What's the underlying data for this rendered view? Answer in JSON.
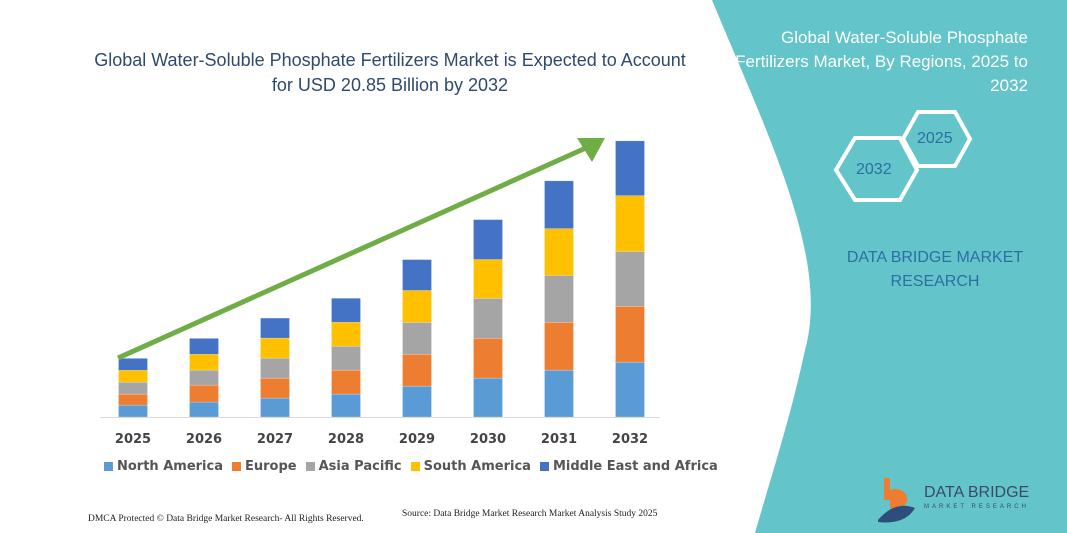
{
  "header": {
    "title": "Global Water-Soluble Phosphate Fertilizers Market is Expected to Account for USD 20.85 Billion by 2032"
  },
  "side_panel": {
    "title": "Global Water-Soluble Phosphate Fertilizers Market, By Regions, 2025 to 2032",
    "hex_start": "2025",
    "hex_end": "2032",
    "brand_text": "DATA BRIDGE MARKET RESEARCH",
    "logo_name": "DATA BRIDGE",
    "logo_sub": "MARKET RESEARCH",
    "panel_color": "#63c5c9"
  },
  "footer": {
    "dmca": "DMCA Protected © Data Bridge Market Research-  All Rights Reserved.",
    "source": "Source: Data Bridge Market Research  Market Analysis Study 2025"
  },
  "chart_data": {
    "type": "bar",
    "stacked": true,
    "title": "Global Water-Soluble Phosphate Fertilizers Market is Expected to Account for USD 20.85 Billion by 2032",
    "xlabel": "",
    "ylabel": "",
    "unit": "USD Billion (estimated)",
    "grid": false,
    "legend_position": "bottom",
    "trend_arrow": true,
    "categories": [
      "2025",
      "2026",
      "2027",
      "2028",
      "2029",
      "2030",
      "2031",
      "2032"
    ],
    "series": [
      {
        "name": "North America",
        "color": "#5b9bd5",
        "values": [
          0.9,
          1.13,
          1.43,
          1.73,
          2.33,
          2.94,
          3.54,
          4.14
        ]
      },
      {
        "name": "Europe",
        "color": "#ed7d31",
        "values": [
          0.83,
          1.28,
          1.51,
          1.81,
          2.41,
          3.01,
          3.61,
          4.22
        ]
      },
      {
        "name": "Asia Pacific",
        "color": "#a5a5a5",
        "values": [
          0.9,
          1.13,
          1.51,
          1.81,
          2.41,
          3.01,
          3.54,
          4.14
        ]
      },
      {
        "name": "South America",
        "color": "#ffc000",
        "values": [
          0.9,
          1.2,
          1.51,
          1.81,
          2.41,
          2.94,
          3.54,
          4.22
        ]
      },
      {
        "name": "Middle East and Africa",
        "color": "#4472c4",
        "values": [
          0.9,
          1.2,
          1.51,
          1.81,
          2.33,
          3.01,
          3.61,
          4.14
        ]
      }
    ],
    "arrow_color": "#70ad47"
  }
}
